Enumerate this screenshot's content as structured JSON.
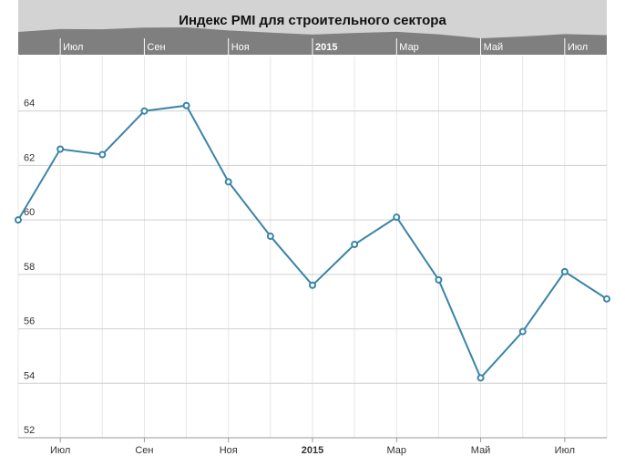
{
  "chart_data": {
    "type": "line",
    "title": "Индекс PMI для строительного сектора",
    "xlabel": "",
    "ylabel": "",
    "x": [
      "2014-06",
      "2014-07",
      "2014-08",
      "2014-09",
      "2014-10",
      "2014-11",
      "2014-12",
      "2015-01",
      "2015-02",
      "2015-03",
      "2015-04",
      "2015-05",
      "2015-06",
      "2015-07",
      "2015-08"
    ],
    "series": [
      {
        "values": [
          60.0,
          62.6,
          62.4,
          64.0,
          64.2,
          61.4,
          59.4,
          57.6,
          59.1,
          60.1,
          57.8,
          54.2,
          55.9,
          58.1,
          57.1
        ]
      }
    ],
    "ylim": [
      52,
      66
    ],
    "yticks": [
      52,
      54,
      56,
      58,
      60,
      62,
      64
    ],
    "xtick_labels": [
      {
        "x": "2014-07",
        "label": "Июл",
        "bold": false
      },
      {
        "x": "2014-09",
        "label": "Сен",
        "bold": false
      },
      {
        "x": "2014-11",
        "label": "Ноя",
        "bold": false
      },
      {
        "x": "2015-01",
        "label": "2015",
        "bold": true
      },
      {
        "x": "2015-03",
        "label": "Мар",
        "bold": false
      },
      {
        "x": "2015-05",
        "label": "Май",
        "bold": false
      },
      {
        "x": "2015-07",
        "label": "Июл",
        "bold": false
      }
    ],
    "grid": true,
    "line_color": "#3a84a6",
    "marker": "circle-open",
    "navigator": true,
    "navigator_color": "#7f7f7f",
    "navigator_bg": "#d3d3d3"
  }
}
